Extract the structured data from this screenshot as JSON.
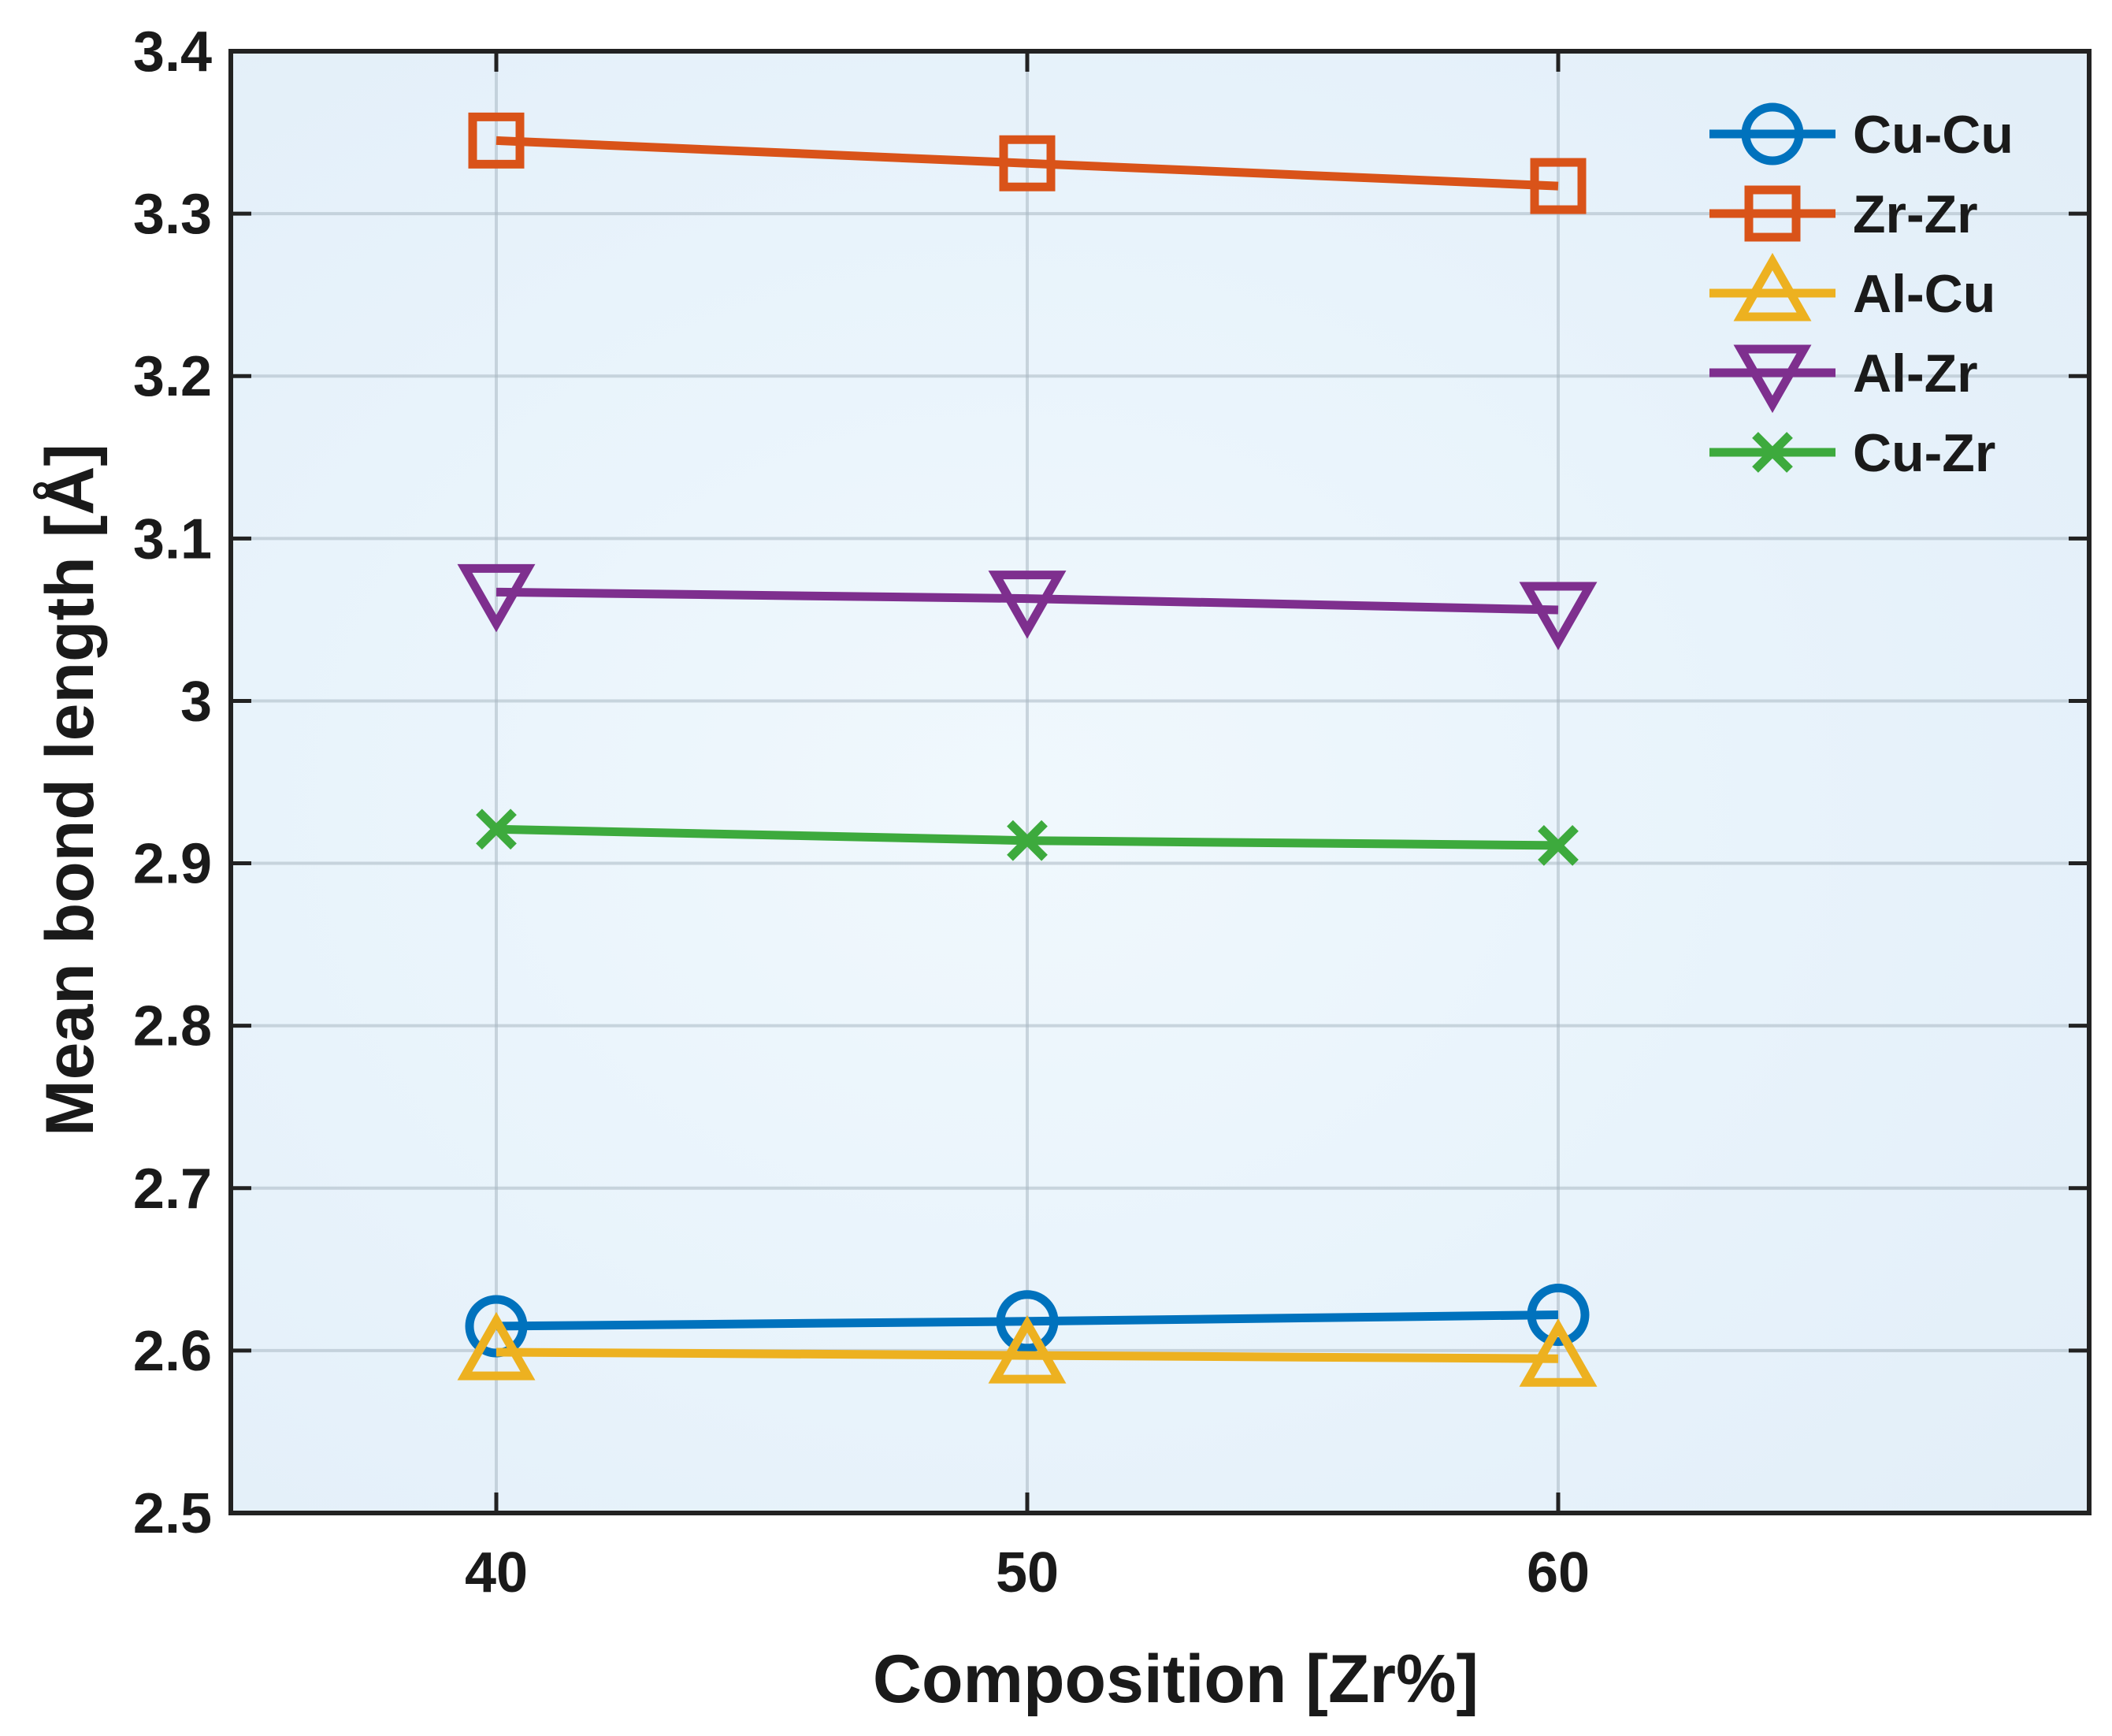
{
  "chart_data": {
    "type": "line",
    "title": "",
    "xlabel": "Composition  [Zr%]",
    "ylabel": "Mean bond length  [Å]",
    "xlim": [
      35,
      70
    ],
    "ylim": [
      2.5,
      3.4
    ],
    "xticks": [
      40,
      50,
      60
    ],
    "xtick_labels": [
      "40",
      "50",
      "60"
    ],
    "yticks": [
      2.5,
      2.6,
      2.7,
      2.8,
      2.9,
      3.0,
      3.1,
      3.2,
      3.3,
      3.4
    ],
    "ytick_labels": [
      "2.5",
      "2.6",
      "2.7",
      "2.8",
      "2.9",
      "3",
      "3.1",
      "3.2",
      "3.3",
      "3.4"
    ],
    "grid": true,
    "legend_position": "top-right",
    "x": [
      40,
      50,
      60
    ],
    "series": [
      {
        "name": "Cu-Cu",
        "marker": "circle",
        "color": "#0072BD",
        "values": [
          2.615,
          2.618,
          2.622
        ]
      },
      {
        "name": "Zr-Zr",
        "marker": "square",
        "color": "#D95319",
        "values": [
          3.345,
          3.331,
          3.317
        ]
      },
      {
        "name": "Al-Cu",
        "marker": "triangle-up",
        "color": "#EDB120",
        "values": [
          2.599,
          2.597,
          2.595
        ]
      },
      {
        "name": "Al-Zr",
        "marker": "triangle-down",
        "color": "#7E2F8E",
        "values": [
          3.067,
          3.063,
          3.056
        ]
      },
      {
        "name": "Cu-Zr",
        "marker": "x",
        "color": "#3DAA3D",
        "values": [
          2.921,
          2.914,
          2.911
        ]
      }
    ]
  }
}
